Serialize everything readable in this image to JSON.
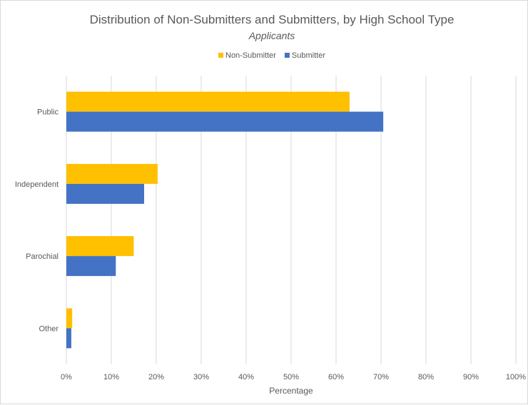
{
  "chart_data": {
    "type": "bar",
    "orientation": "horizontal",
    "title": "Distribution of Non-Submitters and Submitters, by High School Type",
    "subtitle": "Applicants",
    "xlabel": "Percentage",
    "ylabel": "",
    "categories": [
      "Public",
      "Independent",
      "Parochial",
      "Other"
    ],
    "series": [
      {
        "name": "Non-Submitter",
        "color": "#FFC000",
        "values": [
          63,
          20.3,
          15,
          1.3
        ]
      },
      {
        "name": "Submitter",
        "color": "#4472C4",
        "values": [
          70.5,
          17.3,
          11,
          1.1
        ]
      }
    ],
    "xlim": [
      0,
      100
    ],
    "xticks": [
      "0%",
      "10%",
      "20%",
      "30%",
      "40%",
      "50%",
      "60%",
      "70%",
      "80%",
      "90%",
      "100%"
    ],
    "grid": true,
    "legend_position": "top"
  }
}
